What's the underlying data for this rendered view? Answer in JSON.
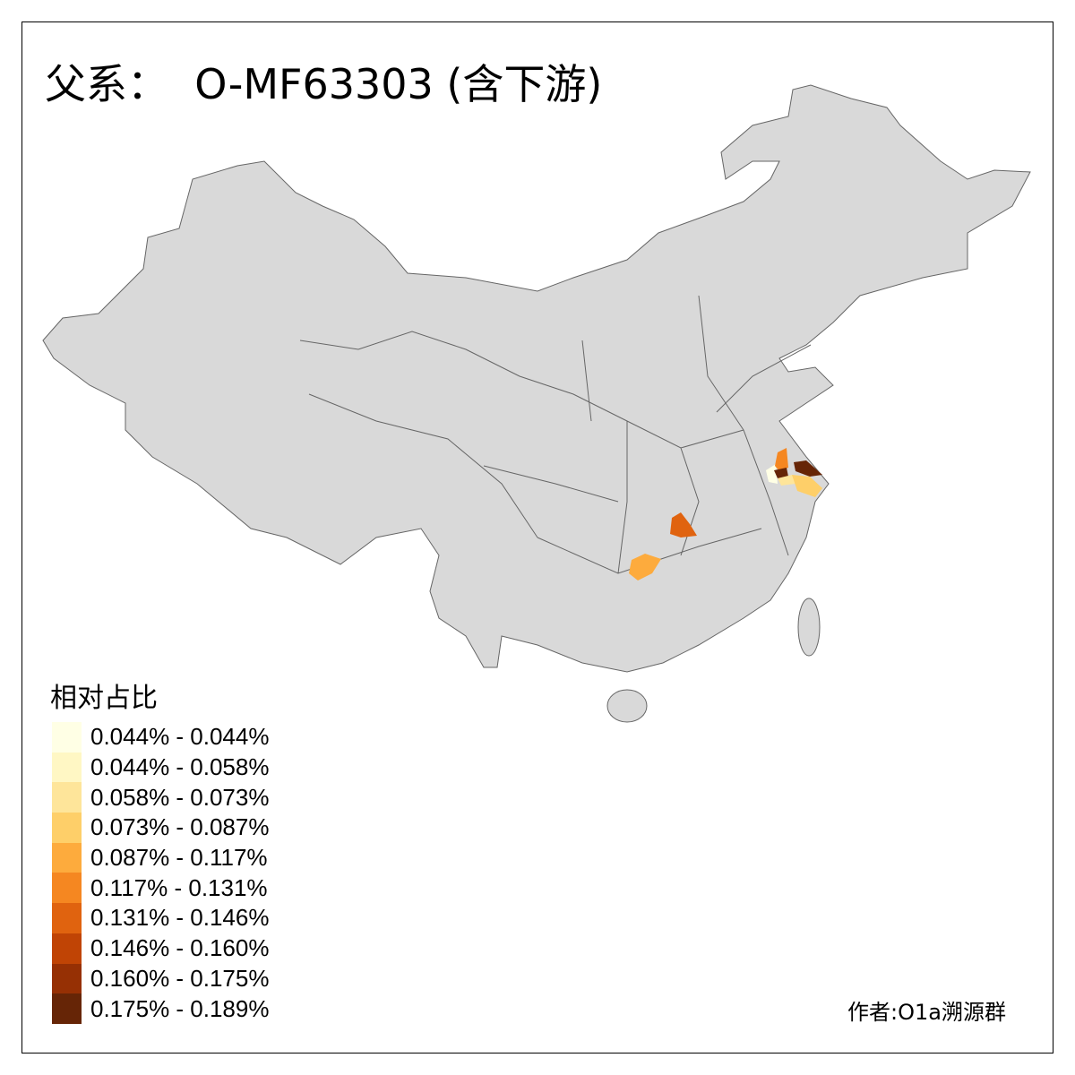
{
  "title": "父系：  O-MF63303 (含下游)",
  "legend": {
    "title": "相对占比",
    "items": [
      {
        "label": "0.044% - 0.044%",
        "color": "#FFFFE5"
      },
      {
        "label": "0.044% - 0.058%",
        "color": "#FFF7C4"
      },
      {
        "label": "0.058% - 0.073%",
        "color": "#FEE59A"
      },
      {
        "label": "0.073% - 0.087%",
        "color": "#FECF69"
      },
      {
        "label": "0.087% - 0.117%",
        "color": "#FDAB3D"
      },
      {
        "label": "0.117% - 0.131%",
        "color": "#F58721"
      },
      {
        "label": "0.131% - 0.146%",
        "color": "#E0630F"
      },
      {
        "label": "0.146% - 0.160%",
        "color": "#C04405"
      },
      {
        "label": "0.160% - 0.175%",
        "color": "#963004"
      },
      {
        "label": "0.175% - 0.189%",
        "color": "#662506"
      }
    ]
  },
  "map": {
    "base_color": "#D9D9D9",
    "border_color": "#666666"
  },
  "credit": "作者:O1a溯源群"
}
